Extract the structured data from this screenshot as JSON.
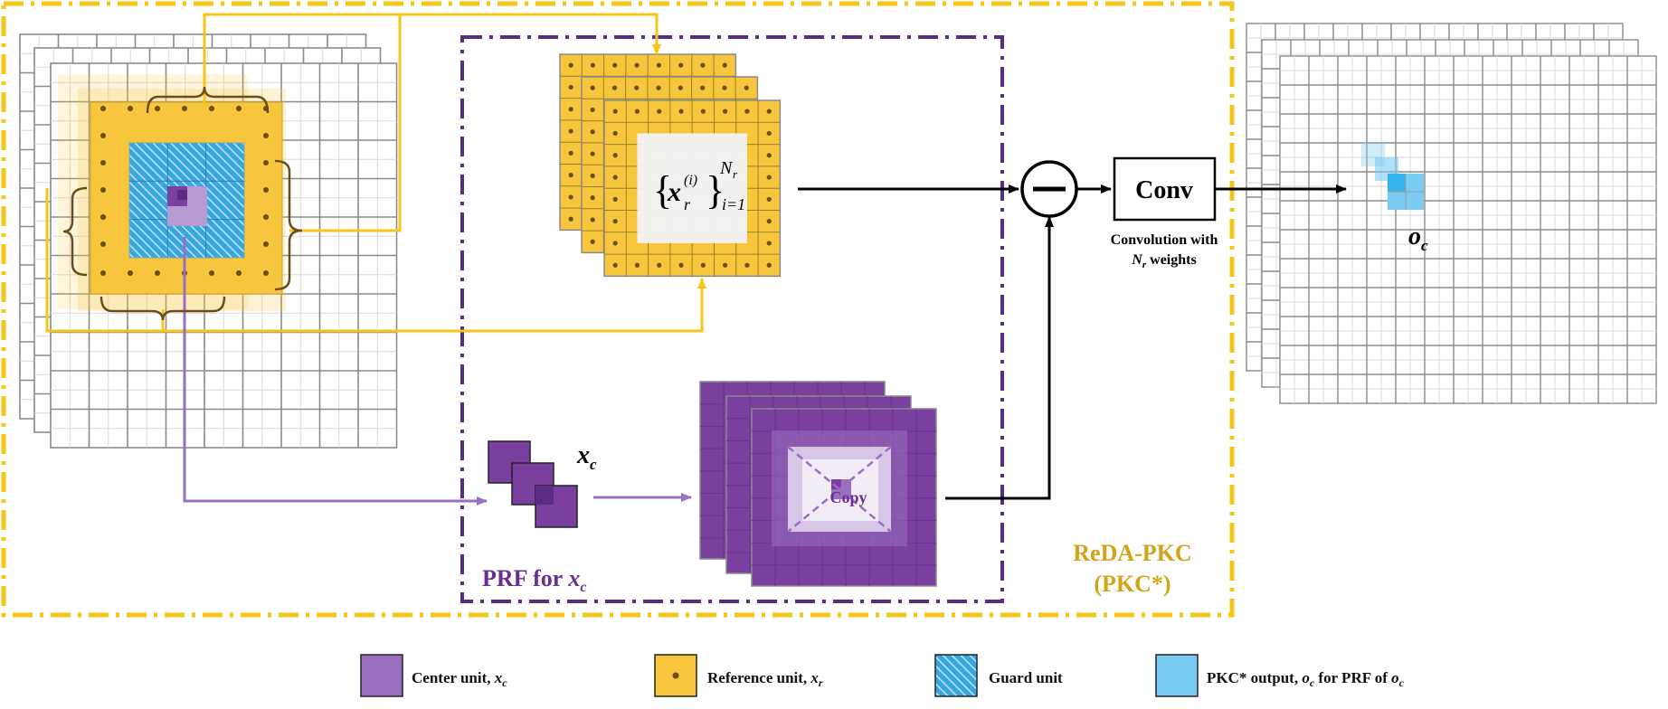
{
  "module": {
    "title_line1": "ReDA-PKC",
    "title_line2": "(PKC*)",
    "prf_label_prefix": "PRF for ",
    "prf_label_var": "x",
    "prf_label_sub": "c"
  },
  "reference_set": {
    "brace_open": "{",
    "brace_close": "}",
    "var": "x",
    "sub": "r",
    "sup": "(i)",
    "upper_limit": "N",
    "upper_limit_sub": "r",
    "lower_limit": "i=1"
  },
  "center_input": {
    "var": "x",
    "sub": "c"
  },
  "copy_label": "Copy",
  "subtract_symbol": "−",
  "conv": {
    "label": "Conv",
    "caption_line1": "Convolution with",
    "caption_line2_var": "N",
    "caption_line2_sub": "r",
    "caption_line2_rest": " weights"
  },
  "output": {
    "var": "o",
    "sub": "c"
  },
  "legend": [
    {
      "swatch": "center",
      "text": "Center unit, ",
      "var": "x",
      "sub": "c",
      "tail": ""
    },
    {
      "swatch": "reference",
      "text": "Reference unit, ",
      "var": "x",
      "sub": "r",
      "tail": ""
    },
    {
      "swatch": "guard",
      "text": "Guard unit",
      "var": "",
      "sub": "",
      "tail": ""
    },
    {
      "swatch": "output",
      "text": "PKC* output, ",
      "var": "o",
      "sub": "c",
      "tail": "  for PRF of ",
      "var2": "o",
      "sub2": "c"
    }
  ],
  "colors": {
    "gold": "#F5C518",
    "gold_text": "#D4A418",
    "purple": "#7B3FA0",
    "purple_dark": "#5B2C83",
    "purple_light": "#9B6FC0",
    "lavender": "#B79AD3",
    "guard_blue": "#3AA6E0",
    "output_blue": "#7ACCF2",
    "ref_yellow": "#F8C63C",
    "grid": "#888888"
  },
  "icons": [
    "minus-circle-icon",
    "arrow-icon",
    "brace-icon",
    "dot-icon"
  ]
}
